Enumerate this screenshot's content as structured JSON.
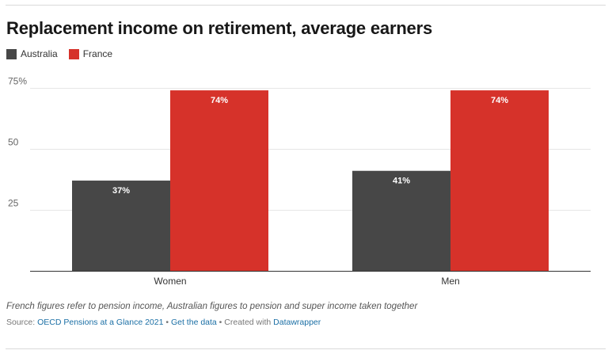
{
  "header": {
    "title": "Replacement income on retirement, average earners"
  },
  "colors": {
    "australia": "#474747",
    "france": "#d6322a",
    "grid": "#e6e6e6",
    "axis": "#333333",
    "link": "#1b6fa5"
  },
  "chart_data": {
    "type": "bar",
    "title": "Replacement income on retirement, average earners",
    "xlabel": "",
    "ylabel": "",
    "categories": [
      "Women",
      "Men"
    ],
    "series": [
      {
        "name": "Australia",
        "values": [
          37,
          41
        ],
        "labels": [
          "37%",
          "41%"
        ],
        "color": "#474747"
      },
      {
        "name": "France",
        "values": [
          74,
          74
        ],
        "labels": [
          "74%",
          "74%"
        ],
        "color": "#d6322a"
      }
    ],
    "ylim": [
      0,
      75
    ],
    "yticks": [
      25,
      50,
      75
    ],
    "ytick_labels": [
      "25",
      "50",
      "75%"
    ],
    "grid": true,
    "legend": "top-left"
  },
  "footer": {
    "notes": "French figures refer to pension income, Australian figures to pension and super income taken together",
    "source_prefix": "Source: ",
    "source_link": "OECD Pensions at a Glance 2021",
    "sep1": " • ",
    "data_link": "Get the data",
    "sep2": " • Created with ",
    "created_with_link": "Datawrapper"
  }
}
